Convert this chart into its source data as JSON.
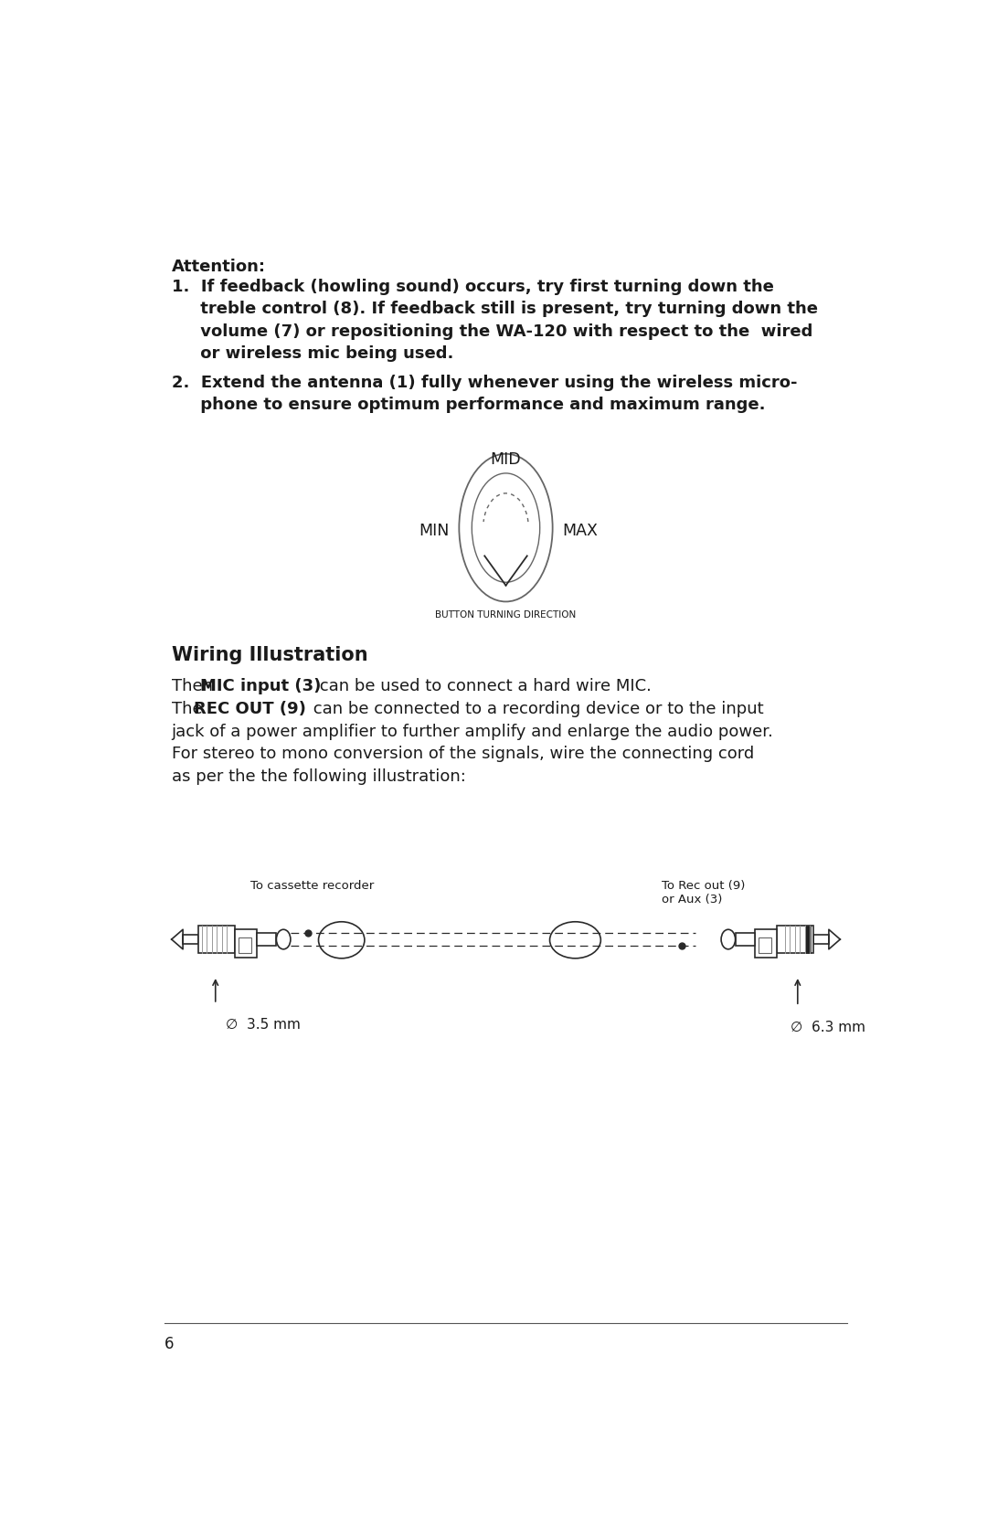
{
  "bg_color": "#ffffff",
  "text_color": "#1a1a1a",
  "attention_label": "Attention",
  "item1_bold": "1.  If feedback (howling sound) occurs, try first turning down the\n     treble control (8). If feedback still is present, try turning down the\n     volume (7) or repositioning the WA-120 with respect to the  wired\n     or wireless mic being used.",
  "item2_bold": "2.  Extend the antenna (1) fully whenever using the wireless micro-\n     phone to ensure optimum performance and maximum range.",
  "knob_mid_label": "MID",
  "knob_min_label": "MIN",
  "knob_max_label": "MAX",
  "knob_caption": "BUTTON TURNING DIRECTION",
  "section_title": "Wiring Illustration",
  "para_line1_pre": "Then ",
  "para_line1_bold": "MIC input (3)",
  "para_line1_post": " can be used to connect a hard wire MIC.",
  "para_line2_pre": "The ",
  "para_line2_bold": "REC OUT (9)",
  "para_line2_post": " can be connected to a recording device or to the input",
  "para_line3": "jack of a power amplifier to further amplify and enlarge the audio power.",
  "para_line4": "For stereo to mono conversion of the signals, wire the connecting cord",
  "para_line5": "as per the the following illustration:",
  "label_cassette": "To cassette recorder",
  "label_rec_out": "To Rec out (9)\nor Aux (3)",
  "label_35mm": "∅  3.5 mm",
  "label_63mm": "∅  6.3 mm",
  "page_number": "6"
}
